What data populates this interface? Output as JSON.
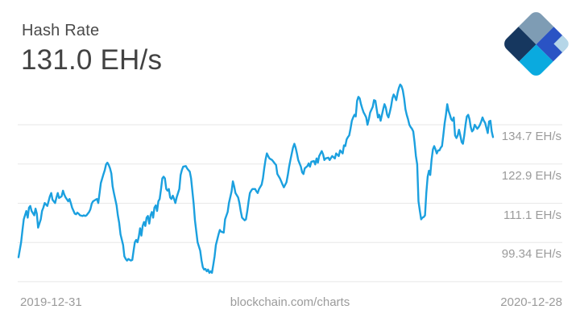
{
  "header": {
    "title": "Hash Rate",
    "value": "131.0 EH/s"
  },
  "logo": {
    "name": "blockchain-logo",
    "colors": {
      "top": "#7e9cb4",
      "right": "#2a53c4",
      "left": "#16375f",
      "bottom": "#0aaadf",
      "corner": "#b5d6e8"
    }
  },
  "footer": {
    "start_date": "2019-12-31",
    "watermark": "blockchain.com/charts",
    "end_date": "2020-12-28"
  },
  "chart_data": {
    "type": "line",
    "title": "Hash Rate",
    "current_value": 131.0,
    "unit": "EH/s",
    "x_start_date": "2019-12-31",
    "x_end_date": "2020-12-28",
    "x_span_days": 363,
    "legend": "none",
    "grid": "horizontal",
    "y_ticks": [
      134.7,
      122.9,
      111.1,
      99.34
    ],
    "y_tick_labels": [
      "134.7 EH/s",
      "122.9 EH/s",
      "111.1 EH/s",
      "99.34 EH/s"
    ],
    "y_grid_values": [
      134.7,
      122.9,
      111.1,
      99.34,
      87.58
    ],
    "ylim": [
      87.58,
      147.5
    ],
    "line_color": "#1ba0df",
    "grid_color": "#e7e7e7",
    "points": [
      [
        0,
        94.9
      ],
      [
        2,
        99.4
      ],
      [
        3,
        103.1
      ],
      [
        4,
        106.3
      ],
      [
        6,
        108.8
      ],
      [
        7,
        106.8
      ],
      [
        8,
        109.8
      ],
      [
        9,
        110.3
      ],
      [
        10,
        108.8
      ],
      [
        12,
        107.5
      ],
      [
        13,
        109.5
      ],
      [
        14,
        108.0
      ],
      [
        15,
        103.8
      ],
      [
        17,
        106.3
      ],
      [
        18,
        108.8
      ],
      [
        19,
        109.8
      ],
      [
        20,
        111.2
      ],
      [
        22,
        110.3
      ],
      [
        23,
        111.7
      ],
      [
        24,
        113.2
      ],
      [
        25,
        114.2
      ],
      [
        26,
        112.2
      ],
      [
        28,
        111.2
      ],
      [
        29,
        112.9
      ],
      [
        30,
        114.2
      ],
      [
        31,
        112.7
      ],
      [
        33,
        113.2
      ],
      [
        34,
        114.9
      ],
      [
        35,
        113.7
      ],
      [
        36,
        112.9
      ],
      [
        38,
        111.7
      ],
      [
        39,
        112.4
      ],
      [
        40,
        111.2
      ],
      [
        41,
        109.8
      ],
      [
        43,
        108.0
      ],
      [
        44,
        107.8
      ],
      [
        45,
        108.3
      ],
      [
        46,
        108.0
      ],
      [
        47,
        107.5
      ],
      [
        49,
        107.3
      ],
      [
        50,
        107.5
      ],
      [
        51,
        107.3
      ],
      [
        52,
        107.5
      ],
      [
        54,
        108.5
      ],
      [
        55,
        109.3
      ],
      [
        56,
        111.0
      ],
      [
        57,
        111.7
      ],
      [
        59,
        112.2
      ],
      [
        60,
        112.4
      ],
      [
        61,
        111.2
      ],
      [
        62,
        114.2
      ],
      [
        63,
        117.2
      ],
      [
        65,
        119.9
      ],
      [
        66,
        121.1
      ],
      [
        67,
        122.8
      ],
      [
        68,
        123.3
      ],
      [
        69,
        122.6
      ],
      [
        70,
        121.6
      ],
      [
        71,
        120.1
      ],
      [
        72,
        116.2
      ],
      [
        73,
        114.2
      ],
      [
        75,
        110.5
      ],
      [
        76,
        107.5
      ],
      [
        77,
        105.3
      ],
      [
        78,
        101.8
      ],
      [
        80,
        98.6
      ],
      [
        81,
        95.2
      ],
      [
        82,
        94.4
      ],
      [
        83,
        93.9
      ],
      [
        84,
        94.4
      ],
      [
        86,
        93.9
      ],
      [
        87,
        94.1
      ],
      [
        88,
        96.8
      ],
      [
        89,
        99.4
      ],
      [
        90,
        100.1
      ],
      [
        91,
        99.4
      ],
      [
        92,
        101.1
      ],
      [
        93,
        103.6
      ],
      [
        94,
        101.4
      ],
      [
        95,
        104.3
      ],
      [
        96,
        105.5
      ],
      [
        97,
        104.3
      ],
      [
        98,
        106.8
      ],
      [
        99,
        107.3
      ],
      [
        100,
        105.0
      ],
      [
        101,
        107.5
      ],
      [
        102,
        108.5
      ],
      [
        103,
        106.8
      ],
      [
        104,
        109.8
      ],
      [
        105,
        110.5
      ],
      [
        106,
        108.8
      ],
      [
        107,
        111.7
      ],
      [
        108,
        112.4
      ],
      [
        109,
        115.4
      ],
      [
        110,
        118.6
      ],
      [
        111,
        119.1
      ],
      [
        112,
        118.6
      ],
      [
        113,
        115.4
      ],
      [
        114,
        114.9
      ],
      [
        115,
        115.4
      ],
      [
        116,
        112.9
      ],
      [
        117,
        112.4
      ],
      [
        118,
        113.4
      ],
      [
        119,
        112.4
      ],
      [
        120,
        111.2
      ],
      [
        121,
        112.9
      ],
      [
        123,
        115.4
      ],
      [
        124,
        119.6
      ],
      [
        125,
        121.1
      ],
      [
        126,
        122.1
      ],
      [
        128,
        122.3
      ],
      [
        129,
        121.6
      ],
      [
        130,
        121.1
      ],
      [
        131,
        120.6
      ],
      [
        132,
        118.6
      ],
      [
        134,
        111.0
      ],
      [
        135,
        106.0
      ],
      [
        136,
        102.6
      ],
      [
        137,
        99.4
      ],
      [
        139,
        96.9
      ],
      [
        140,
        93.9
      ],
      [
        141,
        91.9
      ],
      [
        142,
        91.2
      ],
      [
        143,
        91.4
      ],
      [
        144,
        90.7
      ],
      [
        145,
        91.2
      ],
      [
        146,
        90.2
      ],
      [
        147,
        90.7
      ],
      [
        148,
        90.2
      ],
      [
        149,
        92.7
      ],
      [
        150,
        95.2
      ],
      [
        151,
        98.6
      ],
      [
        152,
        100.1
      ],
      [
        153,
        101.8
      ],
      [
        154,
        103.1
      ],
      [
        155,
        102.6
      ],
      [
        157,
        102.3
      ],
      [
        158,
        106.3
      ],
      [
        160,
        108.5
      ],
      [
        161,
        111.2
      ],
      [
        163,
        114.7
      ],
      [
        164,
        117.7
      ],
      [
        165,
        116.2
      ],
      [
        166,
        114.2
      ],
      [
        168,
        112.9
      ],
      [
        169,
        111.2
      ],
      [
        170,
        108.8
      ],
      [
        171,
        106.8
      ],
      [
        173,
        106.0
      ],
      [
        174,
        106.3
      ],
      [
        175,
        108.8
      ],
      [
        176,
        111.7
      ],
      [
        177,
        114.2
      ],
      [
        178,
        114.9
      ],
      [
        179,
        115.4
      ],
      [
        181,
        115.4
      ],
      [
        182,
        114.7
      ],
      [
        183,
        114.2
      ],
      [
        184,
        115.4
      ],
      [
        186,
        116.7
      ],
      [
        187,
        118.6
      ],
      [
        188,
        121.6
      ],
      [
        189,
        124.3
      ],
      [
        190,
        126.1
      ],
      [
        191,
        125.3
      ],
      [
        192,
        124.6
      ],
      [
        194,
        124.1
      ],
      [
        195,
        123.6
      ],
      [
        196,
        123.1
      ],
      [
        197,
        122.6
      ],
      [
        198,
        119.9
      ],
      [
        200,
        118.6
      ],
      [
        201,
        117.7
      ],
      [
        202,
        116.7
      ],
      [
        203,
        115.9
      ],
      [
        205,
        117.4
      ],
      [
        206,
        119.6
      ],
      [
        207,
        122.1
      ],
      [
        208,
        124.1
      ],
      [
        210,
        127.8
      ],
      [
        211,
        129.0
      ],
      [
        212,
        127.8
      ],
      [
        213,
        126.1
      ],
      [
        214,
        124.1
      ],
      [
        216,
        122.1
      ],
      [
        217,
        120.4
      ],
      [
        218,
        119.9
      ],
      [
        219,
        121.6
      ],
      [
        221,
        122.3
      ],
      [
        222,
        123.1
      ],
      [
        223,
        122.1
      ],
      [
        224,
        123.6
      ],
      [
        226,
        123.8
      ],
      [
        227,
        122.8
      ],
      [
        228,
        124.6
      ],
      [
        229,
        123.3
      ],
      [
        230,
        125.3
      ],
      [
        232,
        126.8
      ],
      [
        233,
        125.8
      ],
      [
        234,
        124.1
      ],
      [
        235,
        124.6
      ],
      [
        237,
        124.8
      ],
      [
        238,
        124.1
      ],
      [
        240,
        125.3
      ],
      [
        242,
        124.6
      ],
      [
        243,
        126.1
      ],
      [
        245,
        125.3
      ],
      [
        246,
        127.0
      ],
      [
        248,
        126.1
      ],
      [
        249,
        128.5
      ],
      [
        250,
        128.3
      ],
      [
        251,
        130.3
      ],
      [
        252,
        131.0
      ],
      [
        253,
        131.5
      ],
      [
        254,
        133.5
      ],
      [
        255,
        135.9
      ],
      [
        256,
        136.9
      ],
      [
        257,
        137.7
      ],
      [
        258,
        137.2
      ],
      [
        259,
        141.9
      ],
      [
        260,
        143.1
      ],
      [
        261,
        142.6
      ],
      [
        262,
        140.9
      ],
      [
        263,
        139.6
      ],
      [
        264,
        138.4
      ],
      [
        265,
        137.7
      ],
      [
        266,
        136.9
      ],
      [
        267,
        134.7
      ],
      [
        268,
        136.4
      ],
      [
        269,
        138.4
      ],
      [
        271,
        140.1
      ],
      [
        272,
        142.1
      ],
      [
        273,
        141.9
      ],
      [
        274,
        139.4
      ],
      [
        275,
        136.9
      ],
      [
        276,
        137.7
      ],
      [
        277,
        135.9
      ],
      [
        279,
        139.4
      ],
      [
        280,
        140.9
      ],
      [
        281,
        139.9
      ],
      [
        282,
        137.7
      ],
      [
        283,
        136.9
      ],
      [
        284,
        138.4
      ],
      [
        285,
        140.1
      ],
      [
        286,
        142.6
      ],
      [
        287,
        143.8
      ],
      [
        288,
        143.1
      ],
      [
        289,
        142.1
      ],
      [
        290,
        144.3
      ],
      [
        291,
        145.8
      ],
      [
        292,
        146.8
      ],
      [
        293,
        146.3
      ],
      [
        294,
        145.1
      ],
      [
        295,
        142.6
      ],
      [
        296,
        139.4
      ],
      [
        297,
        137.7
      ],
      [
        298,
        136.4
      ],
      [
        299,
        134.7
      ],
      [
        300,
        134.0
      ],
      [
        301,
        133.5
      ],
      [
        302,
        132.7
      ],
      [
        303,
        129.5
      ],
      [
        304,
        125.3
      ],
      [
        305,
        122.8
      ],
      [
        306,
        111.7
      ],
      [
        307,
        109.0
      ],
      [
        308,
        106.3
      ],
      [
        309,
        106.8
      ],
      [
        310,
        107.0
      ],
      [
        311,
        107.5
      ],
      [
        312,
        114.2
      ],
      [
        313,
        119.1
      ],
      [
        314,
        120.9
      ],
      [
        315,
        119.6
      ],
      [
        316,
        124.1
      ],
      [
        317,
        127.3
      ],
      [
        318,
        128.3
      ],
      [
        319,
        127.3
      ],
      [
        320,
        126.1
      ],
      [
        321,
        127.0
      ],
      [
        322,
        127.0
      ],
      [
        323,
        127.8
      ],
      [
        324,
        128.3
      ],
      [
        325,
        131.5
      ],
      [
        326,
        135.2
      ],
      [
        327,
        137.7
      ],
      [
        328,
        140.9
      ],
      [
        329,
        138.9
      ],
      [
        330,
        137.7
      ],
      [
        331,
        136.4
      ],
      [
        332,
        135.9
      ],
      [
        333,
        136.9
      ],
      [
        334,
        131.5
      ],
      [
        335,
        130.7
      ],
      [
        336,
        131.5
      ],
      [
        337,
        133.2
      ],
      [
        338,
        131.5
      ],
      [
        339,
        129.5
      ],
      [
        340,
        129.0
      ],
      [
        341,
        131.5
      ],
      [
        342,
        134.7
      ],
      [
        343,
        137.2
      ],
      [
        344,
        137.7
      ],
      [
        345,
        136.4
      ],
      [
        346,
        134.0
      ],
      [
        347,
        132.7
      ],
      [
        348,
        133.2
      ],
      [
        349,
        134.7
      ],
      [
        351,
        133.5
      ],
      [
        352,
        134.0
      ],
      [
        353,
        134.7
      ],
      [
        354,
        135.7
      ],
      [
        355,
        136.9
      ],
      [
        356,
        135.9
      ],
      [
        357,
        135.2
      ],
      [
        359,
        132.2
      ],
      [
        360,
        135.7
      ],
      [
        361,
        135.9
      ],
      [
        362,
        132.7
      ],
      [
        363,
        131.0
      ]
    ]
  }
}
